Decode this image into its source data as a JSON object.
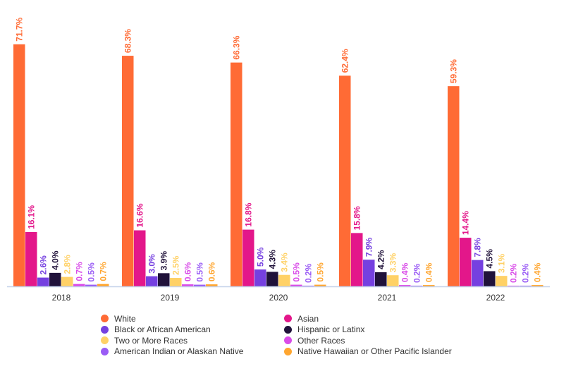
{
  "chart_data": {
    "type": "bar",
    "categories": [
      "2018",
      "2019",
      "2020",
      "2021",
      "2022"
    ],
    "ylim": [
      0,
      75
    ],
    "grid": false,
    "legend_placement": "bottom",
    "series": [
      {
        "name": "White",
        "color": "#ff6b35",
        "values": [
          71.7,
          68.3,
          66.3,
          62.4,
          59.3
        ],
        "labels": [
          "71.7%",
          "68.3%",
          "66.3%",
          "62.4%",
          "59.3%"
        ]
      },
      {
        "name": "Asian",
        "color": "#e3178a",
        "values": [
          16.1,
          16.6,
          16.8,
          15.8,
          14.4
        ],
        "labels": [
          "16.1%",
          "16.6%",
          "16.8%",
          "15.8%",
          "14.4%"
        ]
      },
      {
        "name": "Black or African American",
        "color": "#7540e0",
        "values": [
          2.6,
          3.0,
          5.0,
          7.9,
          7.8
        ],
        "labels": [
          "2.6%",
          "3.0%",
          "5.0%",
          "7.9%",
          "7.8%"
        ]
      },
      {
        "name": "Hispanic or Latinx",
        "color": "#20123a",
        "values": [
          4.0,
          3.9,
          4.3,
          4.2,
          4.5
        ],
        "labels": [
          "4.0%",
          "3.9%",
          "4.3%",
          "4.2%",
          "4.5%"
        ]
      },
      {
        "name": "Two or More Races",
        "color": "#ffd166",
        "values": [
          2.8,
          2.5,
          3.4,
          3.3,
          3.1
        ],
        "labels": [
          "2.8%",
          "2.5%",
          "3.4%",
          "3.3%",
          "3.1%"
        ]
      },
      {
        "name": "Other Races",
        "color": "#d94ce8",
        "values": [
          0.7,
          0.6,
          0.5,
          0.4,
          0.2
        ],
        "labels": [
          "0.7%",
          "0.6%",
          "0.5%",
          "0.4%",
          "0.2%"
        ]
      },
      {
        "name": "American Indian or Alaskan Native",
        "color": "#9a5cf5",
        "values": [
          0.5,
          0.5,
          0.2,
          0.2,
          0.2
        ],
        "labels": [
          "0.5%",
          "0.5%",
          "0.2%",
          "0.2%",
          "0.2%"
        ]
      },
      {
        "name": "Native Hawaiian or Other Pacific Islander",
        "color": "#ffa630",
        "values": [
          0.7,
          0.6,
          0.5,
          0.4,
          0.4
        ],
        "labels": [
          "0.7%",
          "0.6%",
          "0.5%",
          "0.4%",
          "0.4%"
        ]
      }
    ]
  }
}
